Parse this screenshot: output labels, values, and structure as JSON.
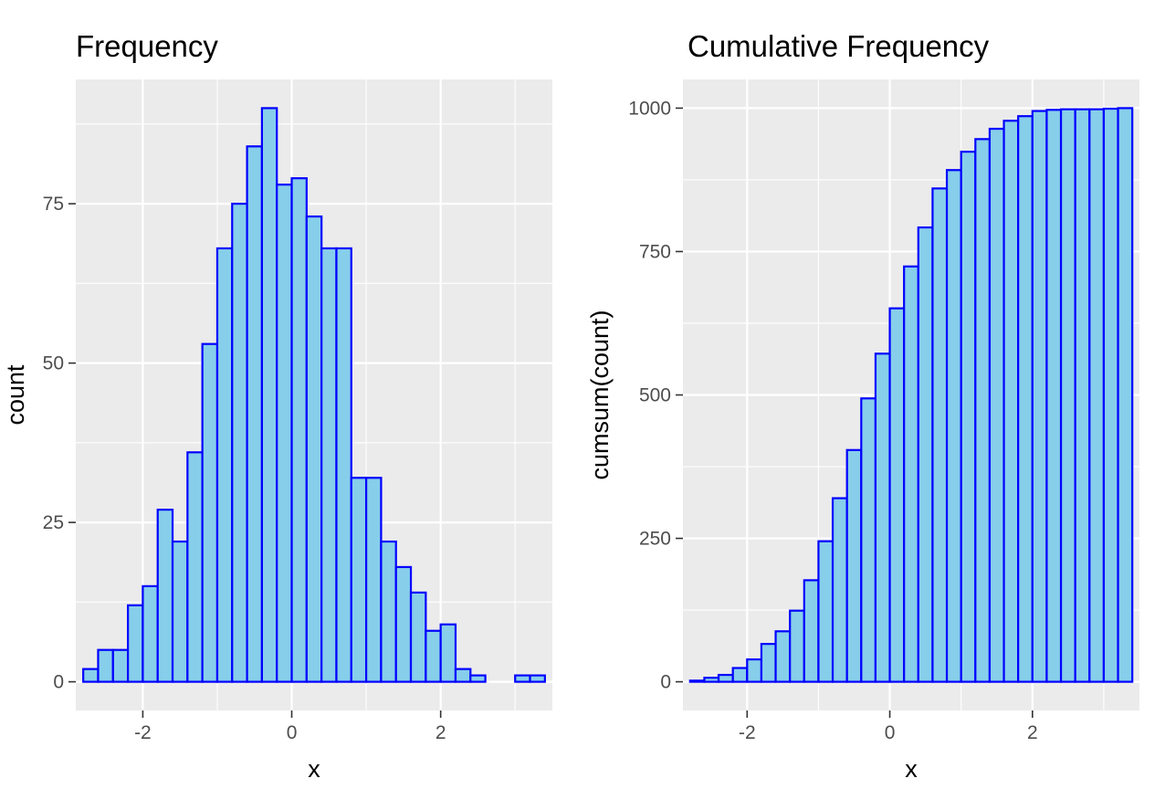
{
  "colors": {
    "panel_background": "#ebebeb",
    "grid": "#ffffff",
    "bar_fill": "#87ceeb",
    "bar_outline": "#0000ff",
    "tick_text": "#4d4d4d",
    "text": "#000000"
  },
  "chart_data": [
    {
      "type": "bar",
      "title": "Frequency",
      "xlabel": "x",
      "ylabel": "count",
      "xlim": [
        -2.9,
        3.5
      ],
      "ylim": [
        -4.5,
        94.5
      ],
      "x_ticks": [
        -2,
        0,
        2
      ],
      "x_tick_labels": [
        "-2",
        "0",
        "2"
      ],
      "y_ticks": [
        0,
        25,
        50,
        75
      ],
      "y_tick_labels": [
        "0",
        "25",
        "50",
        "75"
      ],
      "grid": true,
      "bin_width": 0.2,
      "bin_centers": [
        -2.7,
        -2.5,
        -2.3,
        -2.1,
        -1.9,
        -1.7,
        -1.5,
        -1.3,
        -1.1,
        -0.9,
        -0.7,
        -0.5,
        -0.3,
        -0.1,
        0.1,
        0.3,
        0.5,
        0.7,
        0.9,
        1.1,
        1.3,
        1.5,
        1.7,
        1.9,
        2.1,
        2.3,
        2.5,
        2.7,
        2.9,
        3.1,
        3.3
      ],
      "values": [
        2,
        5,
        5,
        12,
        15,
        27,
        22,
        36,
        53,
        68,
        75,
        84,
        90,
        78,
        79,
        73,
        68,
        68,
        32,
        32,
        22,
        18,
        14,
        8,
        9,
        2,
        1,
        0,
        0,
        1,
        1
      ]
    },
    {
      "type": "bar",
      "title": "Cumulative Frequency",
      "xlabel": "x",
      "ylabel": "cumsum(count)",
      "xlim": [
        -2.9,
        3.5
      ],
      "ylim": [
        -50,
        1050
      ],
      "x_ticks": [
        -2,
        0,
        2
      ],
      "x_tick_labels": [
        "-2",
        "0",
        "2"
      ],
      "y_ticks": [
        0,
        250,
        500,
        750,
        1000
      ],
      "y_tick_labels": [
        "0",
        "250",
        "500",
        "750",
        "1000"
      ],
      "grid": true,
      "bin_width": 0.2,
      "bin_centers": [
        -2.7,
        -2.5,
        -2.3,
        -2.1,
        -1.9,
        -1.7,
        -1.5,
        -1.3,
        -1.1,
        -0.9,
        -0.7,
        -0.5,
        -0.3,
        -0.1,
        0.1,
        0.3,
        0.5,
        0.7,
        0.9,
        1.1,
        1.3,
        1.5,
        1.7,
        1.9,
        2.1,
        2.3,
        2.5,
        2.7,
        2.9,
        3.1,
        3.3
      ],
      "values": [
        2,
        7,
        12,
        24,
        39,
        66,
        88,
        124,
        177,
        245,
        320,
        404,
        494,
        572,
        651,
        724,
        792,
        860,
        892,
        924,
        946,
        964,
        978,
        986,
        995,
        997,
        998,
        998,
        998,
        999,
        1000
      ]
    }
  ]
}
